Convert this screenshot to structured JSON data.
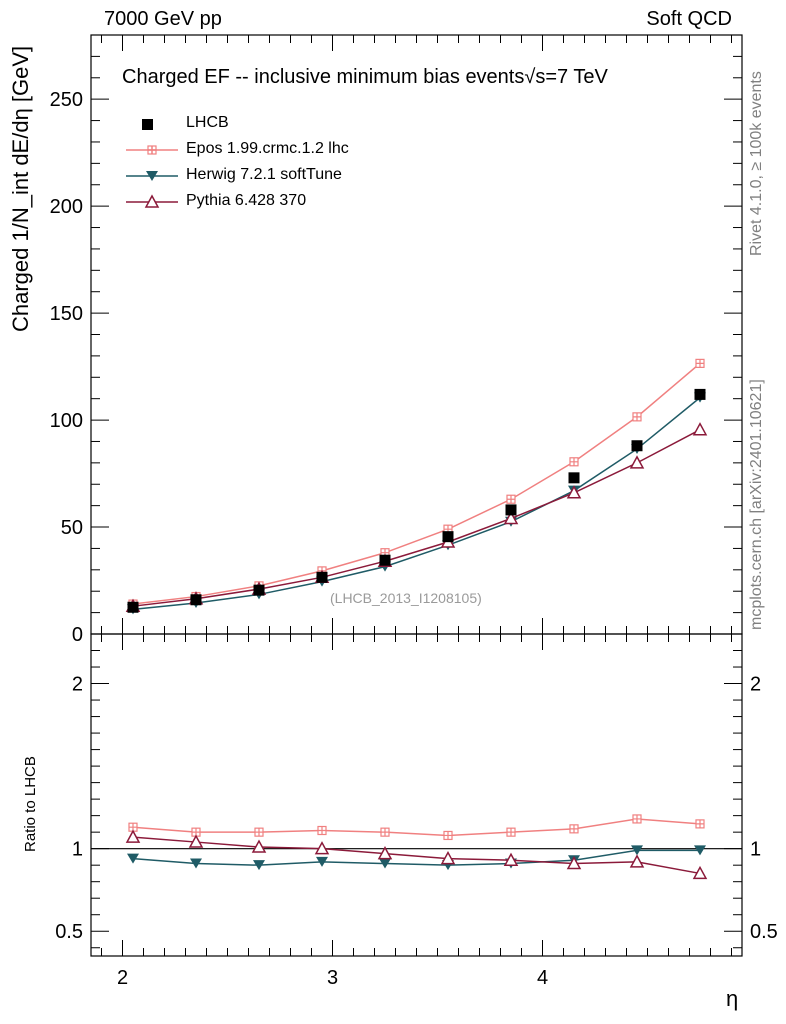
{
  "header": {
    "left": "7000 GeV pp",
    "right": "Soft QCD"
  },
  "side_labels": {
    "rivet": "Rivet 4.1.0, ≥ 100k events",
    "mcplots": "mcplots.cern.ch [arXiv:2401.10621]"
  },
  "watermark": "(LHCB_2013_I1208105)",
  "colors": {
    "lhcb": "#000000",
    "epos": "#f08080",
    "herwig": "#1f5b66",
    "pythia": "#8b1a3a"
  },
  "chart_data": [
    {
      "type": "line",
      "title": "Charged EF -- inclusive minimum bias events",
      "title_suffix": "√s=7 TeV",
      "xlabel": "η",
      "ylabel": "Charged 1/N_int dE/dη [GeV]",
      "xlim": [
        1.85,
        4.95
      ],
      "ylim": [
        0,
        280
      ],
      "yticks": [
        0,
        50,
        100,
        150,
        200,
        250
      ],
      "x": [
        2.05,
        2.35,
        2.65,
        2.95,
        3.25,
        3.55,
        3.85,
        4.15,
        4.45,
        4.75
      ],
      "series": [
        {
          "name": "LHCB",
          "marker": "square",
          "values": [
            12.5,
            16.0,
            20.5,
            26.5,
            34.5,
            45.5,
            58.0,
            73.0,
            88.0,
            112.0
          ]
        },
        {
          "name": "Epos 1.99.crmc.1.2 lhc",
          "marker": "cross",
          "values": [
            14.0,
            17.5,
            22.5,
            29.5,
            38.0,
            49.0,
            63.0,
            80.5,
            101.5,
            126.5
          ]
        },
        {
          "name": "Herwig 7.2.1 softTune",
          "marker": "triangle-down",
          "values": [
            11.5,
            14.5,
            18.5,
            24.5,
            31.5,
            41.5,
            52.5,
            67.0,
            86.5,
            110.5
          ]
        },
        {
          "name": "Pythia 6.428 370",
          "marker": "triangle-up",
          "values": [
            13.0,
            16.5,
            21.0,
            26.5,
            34.0,
            43.0,
            54.0,
            66.0,
            80.0,
            95.5
          ]
        }
      ]
    },
    {
      "type": "line",
      "ylabel": "Ratio to LHCB",
      "xlabel": "η",
      "xlim": [
        1.85,
        4.95
      ],
      "ylim": [
        0.35,
        2.3
      ],
      "yticks": [
        0.5,
        1,
        2
      ],
      "ytick_labels": [
        "0.5",
        "1",
        "2"
      ],
      "xticks": [
        2,
        3,
        4
      ],
      "x": [
        2.05,
        2.35,
        2.65,
        2.95,
        3.25,
        3.55,
        3.85,
        4.15,
        4.45,
        4.75
      ],
      "series": [
        {
          "name": "Epos 1.99.crmc.1.2 lhc",
          "marker": "cross",
          "values": [
            1.13,
            1.1,
            1.1,
            1.11,
            1.1,
            1.08,
            1.1,
            1.12,
            1.18,
            1.15
          ]
        },
        {
          "name": "Herwig 7.2.1 softTune",
          "marker": "triangle-down",
          "values": [
            0.94,
            0.91,
            0.9,
            0.92,
            0.91,
            0.9,
            0.91,
            0.93,
            0.99,
            0.99
          ]
        },
        {
          "name": "Pythia 6.428 370",
          "marker": "triangle-up",
          "values": [
            1.07,
            1.04,
            1.01,
            1.0,
            0.97,
            0.94,
            0.93,
            0.91,
            0.92,
            0.85
          ]
        }
      ]
    }
  ]
}
